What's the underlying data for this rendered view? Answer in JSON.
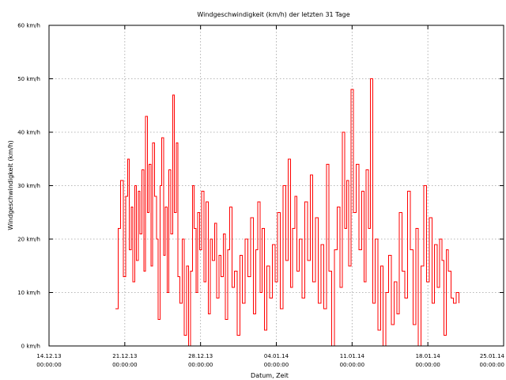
{
  "chart_data": {
    "type": "line",
    "title": "Windgeschwindigkeit (km/h) der letzten 31 Tage",
    "xlabel": "Datum, Zeit",
    "ylabel": "Windgeschwindigkeit (km/h)",
    "ylim": [
      0,
      60
    ],
    "xlim": [
      "2013-12-14",
      "2014-01-25"
    ],
    "yticks": [
      {
        "value": 0,
        "label": "0 km/h"
      },
      {
        "value": 10,
        "label": "10 km/h"
      },
      {
        "value": 20,
        "label": "20 km/h"
      },
      {
        "value": 30,
        "label": "30 km/h"
      },
      {
        "value": 40,
        "label": "40 km/h"
      },
      {
        "value": 50,
        "label": "50 km/h"
      },
      {
        "value": 60,
        "label": "60 km/h"
      }
    ],
    "xticks": [
      {
        "value": "2013-12-14",
        "date": "14.12.13",
        "time": "00:00:00"
      },
      {
        "value": "2013-12-21",
        "date": "21.12.13",
        "time": "00:00:00"
      },
      {
        "value": "2013-12-28",
        "date": "28.12.13",
        "time": "00:00:00"
      },
      {
        "value": "2014-01-04",
        "date": "04.01.14",
        "time": "00:00:00"
      },
      {
        "value": "2014-01-11",
        "date": "11.01.14",
        "time": "00:00:00"
      },
      {
        "value": "2014-01-18",
        "date": "18.01.14",
        "time": "00:00:00"
      },
      {
        "value": "2014-01-25",
        "date": "25.01.14",
        "time": "00:00:00"
      }
    ],
    "grid": true,
    "legend": "none",
    "series": [
      {
        "color": "#ff0000",
        "points": [
          [
            "2013-12-20",
            7
          ],
          [
            "2013-12-20",
            22
          ],
          [
            "2013-12-20",
            31
          ],
          [
            "2013-12-20",
            13
          ],
          [
            "2013-12-21",
            28
          ],
          [
            "2013-12-21",
            35
          ],
          [
            "2013-12-21",
            18
          ],
          [
            "2013-12-21",
            26
          ],
          [
            "2013-12-21",
            12
          ],
          [
            "2013-12-21",
            30
          ],
          [
            "2013-12-22",
            16
          ],
          [
            "2013-12-22",
            29
          ],
          [
            "2013-12-22",
            21
          ],
          [
            "2013-12-22",
            33
          ],
          [
            "2013-12-22",
            14
          ],
          [
            "2013-12-22",
            43
          ],
          [
            "2013-12-23",
            25
          ],
          [
            "2013-12-23",
            34
          ],
          [
            "2013-12-23",
            15
          ],
          [
            "2013-12-23",
            38
          ],
          [
            "2013-12-23",
            28
          ],
          [
            "2013-12-23",
            20
          ],
          [
            "2013-12-24",
            5
          ],
          [
            "2013-12-24",
            30
          ],
          [
            "2013-12-24",
            39
          ],
          [
            "2013-12-24",
            17
          ],
          [
            "2013-12-24",
            26
          ],
          [
            "2013-12-24",
            10
          ],
          [
            "2013-12-25",
            33
          ],
          [
            "2013-12-25",
            21
          ],
          [
            "2013-12-25",
            47
          ],
          [
            "2013-12-25",
            25
          ],
          [
            "2013-12-25",
            38
          ],
          [
            "2013-12-25",
            13
          ],
          [
            "2013-12-26",
            8
          ],
          [
            "2013-12-26",
            20
          ],
          [
            "2013-12-26",
            2
          ],
          [
            "2013-12-26",
            15
          ],
          [
            "2013-12-26",
            0
          ],
          [
            "2013-12-27",
            14
          ],
          [
            "2013-12-27",
            30
          ],
          [
            "2013-12-27",
            22
          ],
          [
            "2013-12-27",
            10
          ],
          [
            "2013-12-27",
            25
          ],
          [
            "2013-12-27",
            18
          ],
          [
            "2013-12-28",
            29
          ],
          [
            "2013-12-28",
            12
          ],
          [
            "2013-12-28",
            27
          ],
          [
            "2013-12-28",
            6
          ],
          [
            "2013-12-28",
            20
          ],
          [
            "2013-12-29",
            16
          ],
          [
            "2013-12-29",
            23
          ],
          [
            "2013-12-29",
            9
          ],
          [
            "2013-12-29",
            17
          ],
          [
            "2013-12-29",
            13
          ],
          [
            "2013-12-30",
            21
          ],
          [
            "2013-12-30",
            5
          ],
          [
            "2013-12-30",
            18
          ],
          [
            "2013-12-30",
            26
          ],
          [
            "2013-12-30",
            11
          ],
          [
            "2013-12-31",
            14
          ],
          [
            "2013-12-31",
            2
          ],
          [
            "2013-12-31",
            17
          ],
          [
            "2013-12-31",
            8
          ],
          [
            "2014-01-01",
            20
          ],
          [
            "2014-01-01",
            13
          ],
          [
            "2014-01-01",
            24
          ],
          [
            "2014-01-01",
            6
          ],
          [
            "2014-01-02",
            18
          ],
          [
            "2014-01-02",
            27
          ],
          [
            "2014-01-02",
            10
          ],
          [
            "2014-01-02",
            22
          ],
          [
            "2014-01-02",
            3
          ],
          [
            "2014-01-03",
            15
          ],
          [
            "2014-01-03",
            9
          ],
          [
            "2014-01-03",
            19
          ],
          [
            "2014-01-03",
            12
          ],
          [
            "2014-01-04",
            25
          ],
          [
            "2014-01-04",
            7
          ],
          [
            "2014-01-04",
            30
          ],
          [
            "2014-01-04",
            16
          ],
          [
            "2014-01-05",
            35
          ],
          [
            "2014-01-05",
            11
          ],
          [
            "2014-01-05",
            22
          ],
          [
            "2014-01-05",
            28
          ],
          [
            "2014-01-05",
            14
          ],
          [
            "2014-01-06",
            20
          ],
          [
            "2014-01-06",
            9
          ],
          [
            "2014-01-06",
            27
          ],
          [
            "2014-01-06",
            16
          ],
          [
            "2014-01-07",
            32
          ],
          [
            "2014-01-07",
            12
          ],
          [
            "2014-01-07",
            24
          ],
          [
            "2014-01-07",
            8
          ],
          [
            "2014-01-08",
            19
          ],
          [
            "2014-01-08",
            7
          ],
          [
            "2014-01-08",
            34
          ],
          [
            "2014-01-08",
            14
          ],
          [
            "2014-01-09",
            0
          ],
          [
            "2014-01-09",
            18
          ],
          [
            "2014-01-09",
            26
          ],
          [
            "2014-01-09",
            11
          ],
          [
            "2014-01-10",
            40
          ],
          [
            "2014-01-10",
            22
          ],
          [
            "2014-01-10",
            31
          ],
          [
            "2014-01-10",
            15
          ],
          [
            "2014-01-10",
            48
          ],
          [
            "2014-01-11",
            25
          ],
          [
            "2014-01-11",
            34
          ],
          [
            "2014-01-11",
            18
          ],
          [
            "2014-01-11",
            29
          ],
          [
            "2014-01-12",
            12
          ],
          [
            "2014-01-12",
            33
          ],
          [
            "2014-01-12",
            22
          ],
          [
            "2014-01-12",
            50
          ],
          [
            "2014-01-12",
            8
          ],
          [
            "2014-01-13",
            20
          ],
          [
            "2014-01-13",
            3
          ],
          [
            "2014-01-13",
            15
          ],
          [
            "2014-01-13",
            0
          ],
          [
            "2014-01-14",
            10
          ],
          [
            "2014-01-14",
            17
          ],
          [
            "2014-01-14",
            4
          ],
          [
            "2014-01-14",
            12
          ],
          [
            "2014-01-15",
            6
          ],
          [
            "2014-01-15",
            25
          ],
          [
            "2014-01-15",
            14
          ],
          [
            "2014-01-15",
            9
          ],
          [
            "2014-01-16",
            29
          ],
          [
            "2014-01-16",
            18
          ],
          [
            "2014-01-16",
            4
          ],
          [
            "2014-01-16",
            22
          ],
          [
            "2014-01-17",
            0
          ],
          [
            "2014-01-17",
            15
          ],
          [
            "2014-01-17",
            30
          ],
          [
            "2014-01-17",
            12
          ],
          [
            "2014-01-18",
            24
          ],
          [
            "2014-01-18",
            8
          ],
          [
            "2014-01-18",
            19
          ],
          [
            "2014-01-18",
            11
          ],
          [
            "2014-01-19",
            20
          ],
          [
            "2014-01-19",
            16
          ],
          [
            "2014-01-19",
            2
          ],
          [
            "2014-01-19",
            18
          ],
          [
            "2014-01-19",
            14
          ],
          [
            "2014-01-20",
            9
          ],
          [
            "2014-01-20",
            8
          ],
          [
            "2014-01-20",
            10
          ],
          [
            "2014-01-20",
            8
          ]
        ]
      }
    ]
  }
}
